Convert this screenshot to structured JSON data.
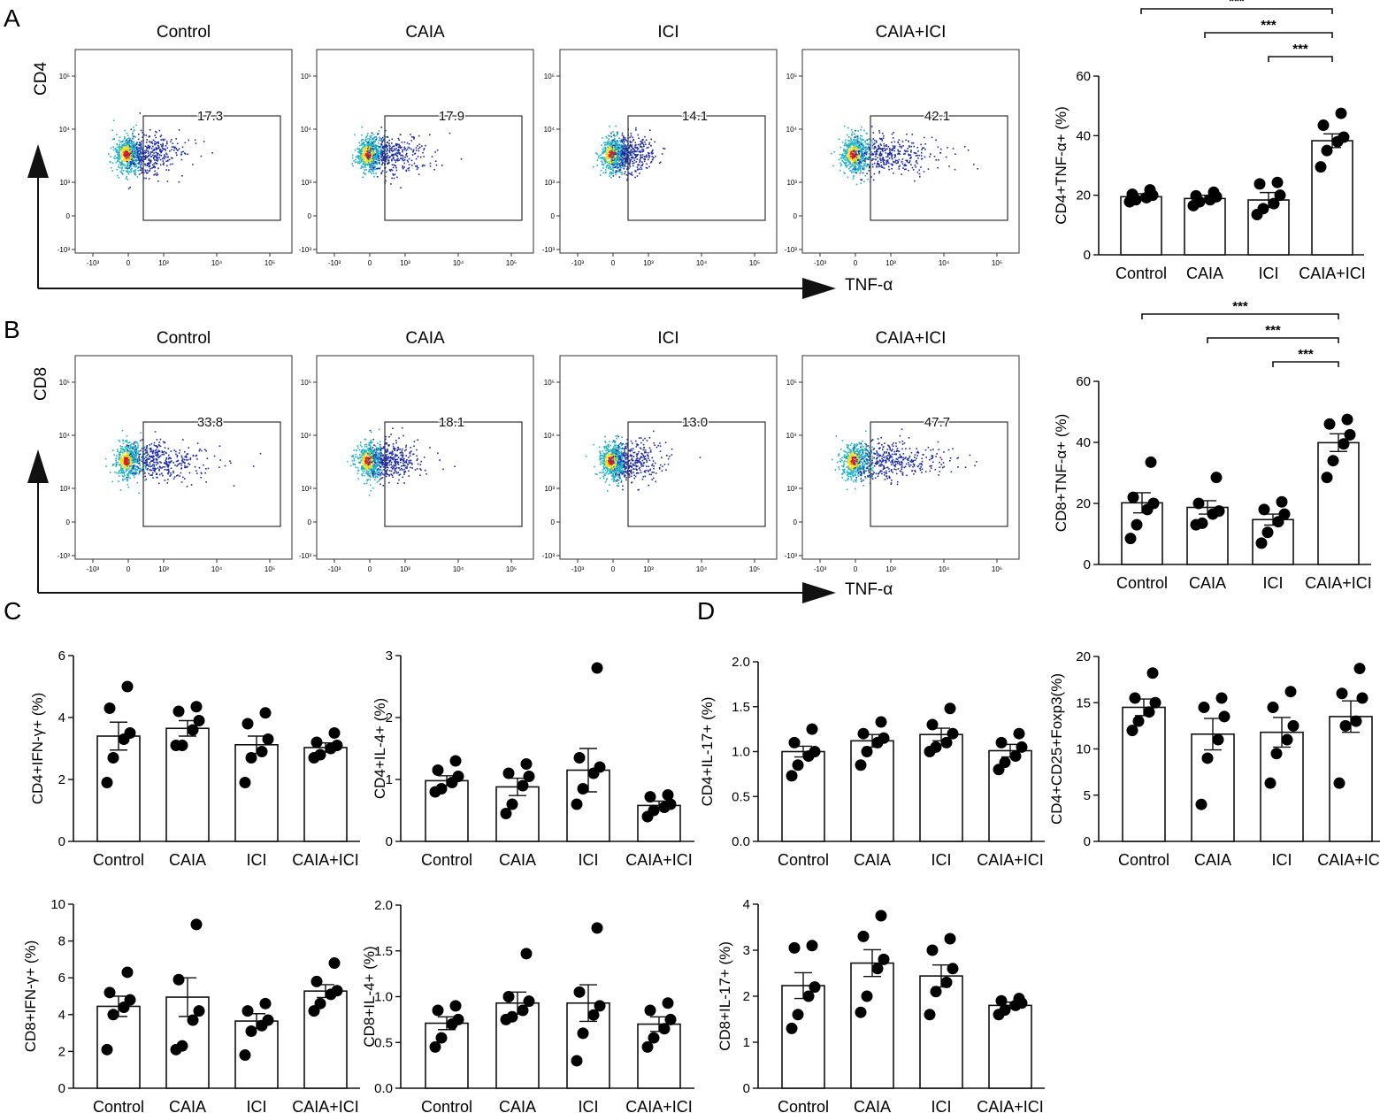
{
  "chart_data": [
    {
      "type": "flow",
      "panel": "A",
      "marker": "CD4",
      "x_label": "TNF-α",
      "samples": [
        {
          "title": "Control",
          "gate_pct": "17.3"
        },
        {
          "title": "CAIA",
          "gate_pct": "17.9"
        },
        {
          "title": "ICI",
          "gate_pct": "14.1"
        },
        {
          "title": "CAIA+ICI",
          "gate_pct": "42.1"
        }
      ]
    },
    {
      "type": "bar",
      "panel": "A",
      "ylabel": "CD4+TNF-α+ (%)",
      "categories": [
        "Control",
        "CAIA",
        "ICI",
        "CAIA+ICI"
      ],
      "means": [
        19.5,
        18.9,
        18.4,
        38.3
      ],
      "sem": [
        1.0,
        1.1,
        2.5,
        2.3
      ],
      "points": [
        [
          17.8,
          18.5,
          19.2,
          20.0,
          20.3,
          21.8
        ],
        [
          16.5,
          17.8,
          18.5,
          19.5,
          19.8,
          21.0
        ],
        [
          13.5,
          15.5,
          17.2,
          20.0,
          23.8,
          24.3
        ],
        [
          29.5,
          35.0,
          38.0,
          39.5,
          43.5,
          47.5
        ]
      ],
      "ylim": [
        0,
        60
      ],
      "yticks": [
        "0",
        "20",
        "40",
        "60"
      ],
      "significance": [
        {
          "from": 0,
          "to": 3,
          "label": "***"
        },
        {
          "from": 1,
          "to": 3,
          "label": "***"
        },
        {
          "from": 2,
          "to": 3,
          "label": "***"
        }
      ]
    },
    {
      "type": "flow",
      "panel": "B",
      "marker": "CD8",
      "x_label": "TNF-α",
      "samples": [
        {
          "title": "Control",
          "gate_pct": "33.8"
        },
        {
          "title": "CAIA",
          "gate_pct": "18.1"
        },
        {
          "title": "ICI",
          "gate_pct": "13.0"
        },
        {
          "title": "CAIA+ICI",
          "gate_pct": "47.7"
        }
      ]
    },
    {
      "type": "bar",
      "panel": "B",
      "ylabel": "CD8+TNF-α+ (%)",
      "categories": [
        "Control",
        "CAIA",
        "ICI",
        "CAIA+ICI"
      ],
      "means": [
        20.2,
        18.7,
        14.7,
        39.9
      ],
      "sem": [
        3.3,
        2.2,
        1.8,
        2.9
      ],
      "points": [
        [
          8.5,
          13.0,
          18.0,
          20.0,
          22.0,
          33.5
        ],
        [
          13.0,
          13.5,
          16.5,
          17.5,
          20.0,
          28.5
        ],
        [
          7.0,
          10.5,
          14.0,
          16.5,
          18.0,
          20.5
        ],
        [
          28.5,
          34.0,
          39.5,
          42.5,
          46.0,
          47.5
        ]
      ],
      "ylim": [
        0,
        60
      ],
      "yticks": [
        "0",
        "20",
        "40",
        "60"
      ],
      "significance": [
        {
          "from": 0,
          "to": 3,
          "label": "***"
        },
        {
          "from": 1,
          "to": 3,
          "label": "***"
        },
        {
          "from": 2,
          "to": 3,
          "label": "***"
        }
      ]
    },
    {
      "type": "bar",
      "panel": "C",
      "ylabel": "CD4+IFN-γ+ (%)",
      "categories": [
        "Control",
        "CAIA",
        "ICI",
        "CAIA+ICI"
      ],
      "means": [
        3.4,
        3.65,
        3.12,
        3.03
      ],
      "sem": [
        0.45,
        0.25,
        0.28,
        0.15
      ],
      "points": [
        [
          1.9,
          2.7,
          3.3,
          3.5,
          4.3,
          5.0
        ],
        [
          3.1,
          3.1,
          3.6,
          3.9,
          4.2,
          4.35
        ],
        [
          1.9,
          2.7,
          2.9,
          3.3,
          3.8,
          4.15
        ],
        [
          2.7,
          2.8,
          3.0,
          3.1,
          3.2,
          3.5
        ]
      ],
      "ylim": [
        0,
        6
      ],
      "yticks": [
        "0",
        "2",
        "4",
        "6"
      ]
    },
    {
      "type": "bar",
      "panel": "C",
      "ylabel": "CD4+IL-4+ (%)",
      "categories": [
        "Control",
        "CAIA",
        "ICI",
        "CAIA+ICI"
      ],
      "means": [
        0.98,
        0.88,
        1.15,
        0.58
      ],
      "sem": [
        0.08,
        0.14,
        0.35,
        0.07
      ],
      "points": [
        [
          0.8,
          0.85,
          0.95,
          1.05,
          1.15,
          1.3
        ],
        [
          0.45,
          0.6,
          0.9,
          1.05,
          1.1,
          1.25
        ],
        [
          0.6,
          0.85,
          1.1,
          1.2,
          1.35,
          2.8
        ],
        [
          0.4,
          0.5,
          0.55,
          0.6,
          0.72,
          0.75
        ]
      ],
      "ylim": [
        0,
        3
      ],
      "yticks": [
        "0",
        "1",
        "2",
        "3"
      ]
    },
    {
      "type": "bar",
      "panel": "C",
      "ylabel": "CD8+IFN-γ+ (%)",
      "categories": [
        "Control",
        "CAIA",
        "ICI",
        "CAIA+ICI"
      ],
      "means": [
        4.45,
        4.95,
        3.65,
        5.28
      ],
      "sem": [
        0.55,
        1.05,
        0.4,
        0.35
      ],
      "points": [
        [
          2.1,
          4.0,
          4.4,
          4.8,
          5.2,
          6.3
        ],
        [
          2.1,
          2.3,
          3.7,
          4.2,
          5.9,
          8.9
        ],
        [
          1.8,
          3.1,
          3.4,
          3.7,
          4.2,
          4.6
        ],
        [
          4.2,
          4.6,
          5.1,
          5.3,
          5.8,
          6.8
        ]
      ],
      "ylim": [
        0,
        10
      ],
      "yticks": [
        "0",
        "2",
        "4",
        "6",
        "8",
        "10"
      ]
    },
    {
      "type": "bar",
      "panel": "C",
      "ylabel": "CD8+IL-4+ (%)",
      "categories": [
        "Control",
        "CAIA",
        "ICI",
        "CAIA+ICI"
      ],
      "means": [
        0.71,
        0.93,
        0.93,
        0.7
      ],
      "sem": [
        0.07,
        0.12,
        0.2,
        0.08
      ],
      "points": [
        [
          0.45,
          0.55,
          0.7,
          0.75,
          0.85,
          0.9
        ],
        [
          0.75,
          0.78,
          0.85,
          0.95,
          1.0,
          1.47
        ],
        [
          0.3,
          0.6,
          0.8,
          0.9,
          1.05,
          1.75
        ],
        [
          0.45,
          0.55,
          0.65,
          0.75,
          0.85,
          0.93
        ]
      ],
      "ylim": [
        0,
        2.0
      ],
      "yticks": [
        "0.0",
        "0.5",
        "1.0",
        "1.5",
        "2.0"
      ]
    },
    {
      "type": "bar",
      "panel": "D",
      "ylabel": "CD4+IL-17+ (%)",
      "categories": [
        "Control",
        "CAIA",
        "ICI",
        "CAIA+ICI"
      ],
      "means": [
        1.0,
        1.12,
        1.19,
        1.01
      ],
      "sem": [
        0.06,
        0.07,
        0.07,
        0.07
      ],
      "points": [
        [
          0.73,
          0.85,
          0.95,
          1.0,
          1.1,
          1.25
        ],
        [
          0.85,
          1.0,
          1.1,
          1.15,
          1.2,
          1.33
        ],
        [
          1.0,
          1.05,
          1.1,
          1.2,
          1.3,
          1.48
        ],
        [
          0.8,
          0.88,
          0.95,
          1.05,
          1.1,
          1.2
        ]
      ],
      "ylim": [
        0,
        2.0
      ],
      "yticks": [
        "0.0",
        "0.5",
        "1.0",
        "1.5",
        "2.0"
      ]
    },
    {
      "type": "bar",
      "panel": "D",
      "ylabel": "CD4+CD25+Foxp3(%)",
      "categories": [
        "Control",
        "CAIA",
        "ICI",
        "CAIA+ICI"
      ],
      "means": [
        14.5,
        11.6,
        11.8,
        13.5
      ],
      "sem": [
        0.9,
        1.7,
        1.6,
        1.7
      ],
      "points": [
        [
          12.0,
          13.0,
          14.0,
          15.0,
          15.5,
          18.2
        ],
        [
          4.0,
          9.0,
          11.0,
          13.5,
          14.5,
          15.5
        ],
        [
          6.3,
          9.5,
          11.0,
          12.5,
          14.5,
          16.2
        ],
        [
          6.3,
          12.5,
          13.0,
          15.5,
          16.0,
          18.7
        ]
      ],
      "ylim": [
        0,
        20
      ],
      "yticks": [
        "0",
        "5",
        "10",
        "15",
        "20"
      ]
    },
    {
      "type": "bar",
      "panel": "D",
      "ylabel": "CD8+IL-17+ (%)",
      "categories": [
        "Control",
        "CAIA",
        "ICI",
        "CAIA+ICI"
      ],
      "means": [
        2.23,
        2.72,
        2.44,
        1.8
      ],
      "sem": [
        0.28,
        0.29,
        0.24,
        0.07
      ],
      "points": [
        [
          1.3,
          1.6,
          2.0,
          2.2,
          3.05,
          3.1
        ],
        [
          1.65,
          2.0,
          2.6,
          2.8,
          3.3,
          3.75
        ],
        [
          1.6,
          2.1,
          2.3,
          2.6,
          3.0,
          3.25
        ],
        [
          1.6,
          1.7,
          1.8,
          1.85,
          1.9,
          1.95
        ]
      ],
      "ylim": [
        0,
        4
      ],
      "yticks": [
        "0",
        "1",
        "2",
        "3",
        "4"
      ]
    }
  ],
  "panel_labels": [
    "A",
    "B",
    "C",
    "D"
  ],
  "flow_axis_ticks": {
    "y": [
      "10⁵",
      "10⁴",
      "10³",
      "0",
      "-10³"
    ],
    "x": [
      "-10³",
      "0",
      "10³",
      "10⁴",
      "10⁵"
    ]
  },
  "colors": {
    "axis": "#111111",
    "bar_fill": "#ffffff",
    "dot": "#000000",
    "density_low": "#1c2aa8",
    "density_mid": "#1fb3c4",
    "density_high": "#e8e020",
    "density_peak": "#e21a1a"
  }
}
